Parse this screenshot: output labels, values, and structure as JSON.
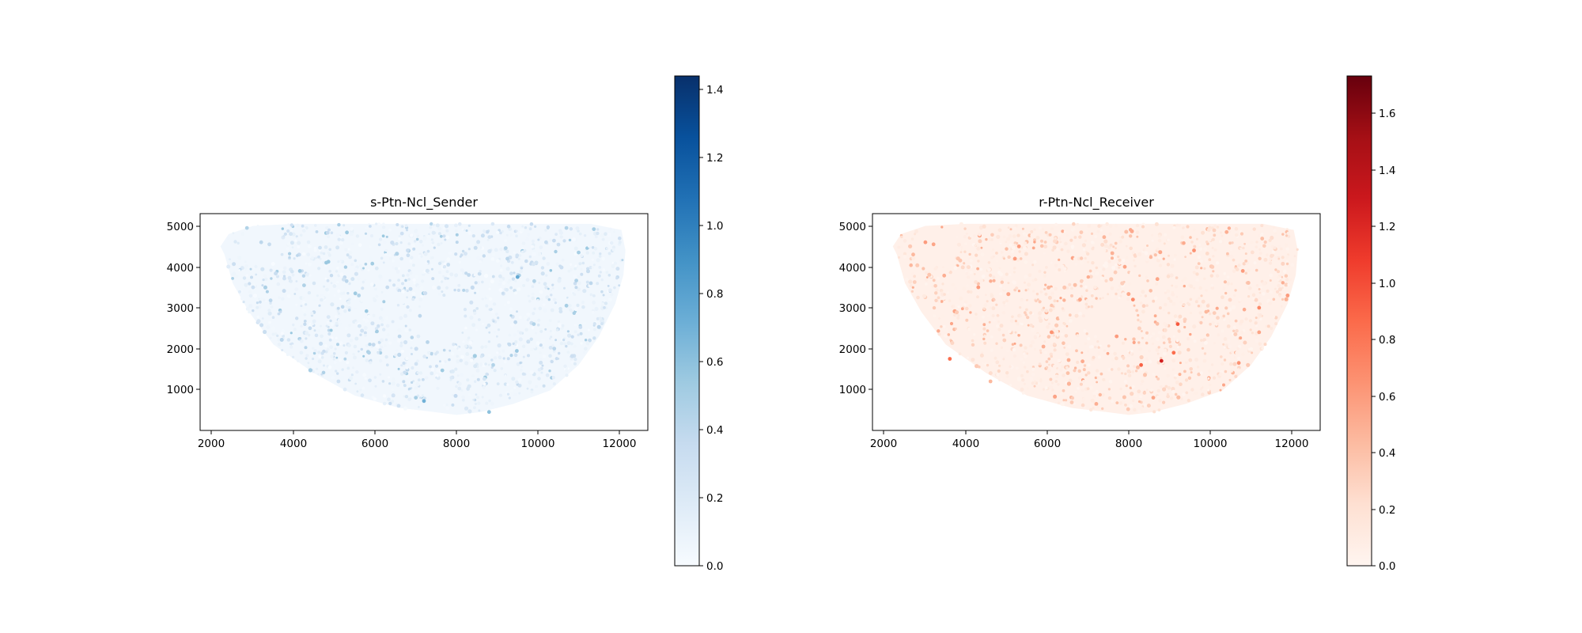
{
  "figure": {
    "panels": [
      {
        "title": "s-Ptn-Ncl_Sender",
        "cmap": "Blues",
        "colors": [
          "#f7fbff",
          "#deebf7",
          "#c6dbef",
          "#9ecae1",
          "#6baed6",
          "#4292c6",
          "#2171b5",
          "#08519c",
          "#08306b"
        ],
        "xticks": [
          "2000",
          "4000",
          "6000",
          "8000",
          "10000",
          "12000"
        ],
        "yticks": [
          "1000",
          "2000",
          "3000",
          "4000",
          "5000"
        ],
        "cbar_ticks": [
          "0.0",
          "0.2",
          "0.4",
          "0.6",
          "0.8",
          "1.0",
          "1.2",
          "1.4"
        ]
      },
      {
        "title": "r-Ptn-Ncl_Receiver",
        "cmap": "Reds",
        "colors": [
          "#fff5f0",
          "#fee0d2",
          "#fcbba1",
          "#fc9272",
          "#fb6a4a",
          "#ef3b2c",
          "#cb181d",
          "#a50f15",
          "#67000d"
        ],
        "xticks": [
          "2000",
          "4000",
          "6000",
          "8000",
          "10000",
          "12000"
        ],
        "yticks": [
          "1000",
          "2000",
          "3000",
          "4000",
          "5000"
        ],
        "cbar_ticks": [
          "0.0",
          "0.2",
          "0.4",
          "0.6",
          "0.8",
          "1.0",
          "1.2",
          "1.4",
          "1.6"
        ]
      }
    ]
  },
  "chart_data": [
    {
      "type": "scatter",
      "title": "s-Ptn-Ncl_Sender",
      "xlabel": "",
      "ylabel": "",
      "xlim": [
        1700,
        12700
      ],
      "ylim": [
        0,
        5300
      ],
      "color_scale": {
        "cmap": "Blues",
        "range": [
          0,
          1.44
        ]
      },
      "tissue_boundary": {
        "x": [
          2300,
          2500,
          2900,
          3500,
          4500,
          5500,
          6600,
          7300,
          8000,
          8600,
          9400,
          10300,
          11000,
          11500,
          11900,
          12100,
          12150,
          12050,
          11300,
          10000,
          8500,
          7000,
          5500,
          4000,
          3000,
          2400,
          2200
        ],
        "y": [
          4300,
          3600,
          2900,
          2100,
          1400,
          850,
          550,
          470,
          380,
          450,
          650,
          980,
          1600,
          2300,
          3100,
          3800,
          4400,
          4900,
          5050,
          5050,
          5050,
          5050,
          5050,
          5050,
          5000,
          4800,
          4500
        ]
      },
      "points": [
        {
          "x": 2850,
          "y": 4950,
          "v": 0.45
        },
        {
          "x": 3200,
          "y": 4600,
          "v": 0.4
        },
        {
          "x": 3400,
          "y": 4550,
          "v": 0.35
        },
        {
          "x": 4150,
          "y": 3900,
          "v": 0.5
        },
        {
          "x": 4800,
          "y": 4100,
          "v": 0.55
        },
        {
          "x": 5300,
          "y": 3650,
          "v": 0.4
        },
        {
          "x": 5600,
          "y": 3300,
          "v": 0.45
        },
        {
          "x": 6300,
          "y": 3500,
          "v": 0.35
        },
        {
          "x": 7100,
          "y": 2800,
          "v": 0.4
        },
        {
          "x": 5850,
          "y": 1900,
          "v": 0.45
        },
        {
          "x": 6600,
          "y": 2300,
          "v": 0.38
        },
        {
          "x": 7200,
          "y": 720,
          "v": 0.7
        },
        {
          "x": 7000,
          "y": 800,
          "v": 0.5
        },
        {
          "x": 8800,
          "y": 450,
          "v": 0.6
        },
        {
          "x": 8900,
          "y": 1600,
          "v": 0.45
        },
        {
          "x": 9500,
          "y": 3750,
          "v": 0.75
        },
        {
          "x": 9250,
          "y": 4200,
          "v": 0.4
        },
        {
          "x": 9900,
          "y": 2600,
          "v": 0.45
        },
        {
          "x": 10700,
          "y": 4950,
          "v": 0.45
        },
        {
          "x": 11000,
          "y": 4350,
          "v": 0.5
        },
        {
          "x": 11300,
          "y": 3600,
          "v": 0.4
        },
        {
          "x": 10700,
          "y": 3050,
          "v": 0.5
        },
        {
          "x": 10400,
          "y": 2000,
          "v": 0.4
        },
        {
          "x": 9300,
          "y": 2100,
          "v": 0.35
        },
        {
          "x": 8300,
          "y": 3800,
          "v": 0.38
        },
        {
          "x": 6800,
          "y": 4400,
          "v": 0.3
        },
        {
          "x": 4400,
          "y": 2500,
          "v": 0.35
        },
        {
          "x": 3000,
          "y": 3500,
          "v": 0.3
        },
        {
          "x": 5100,
          "y": 1200,
          "v": 0.3
        },
        {
          "x": 10200,
          "y": 4600,
          "v": 0.35
        }
      ]
    },
    {
      "type": "scatter",
      "title": "r-Ptn-Ncl_Receiver",
      "xlabel": "",
      "ylabel": "",
      "xlim": [
        1700,
        12700
      ],
      "ylim": [
        0,
        5300
      ],
      "color_scale": {
        "cmap": "Reds",
        "range": [
          0,
          1.73
        ]
      },
      "tissue_boundary": {
        "x": [
          2300,
          2500,
          2900,
          3500,
          4500,
          5500,
          6600,
          7300,
          8000,
          8600,
          9400,
          10300,
          11000,
          11500,
          11900,
          12100,
          12150,
          12050,
          11300,
          10000,
          8500,
          7000,
          5500,
          4000,
          3000,
          2400,
          2200
        ],
        "y": [
          4300,
          3600,
          2900,
          2100,
          1400,
          850,
          550,
          470,
          380,
          450,
          650,
          980,
          1600,
          2300,
          3100,
          3800,
          4400,
          4900,
          5050,
          5050,
          5050,
          5050,
          5050,
          5050,
          5000,
          4800,
          4500
        ]
      },
      "points": [
        {
          "x": 3000,
          "y": 4600,
          "v": 0.6
        },
        {
          "x": 3200,
          "y": 4550,
          "v": 0.55
        },
        {
          "x": 3600,
          "y": 1750,
          "v": 0.85
        },
        {
          "x": 4300,
          "y": 3500,
          "v": 0.6
        },
        {
          "x": 5200,
          "y": 4200,
          "v": 0.6
        },
        {
          "x": 6100,
          "y": 2400,
          "v": 0.65
        },
        {
          "x": 6800,
          "y": 3200,
          "v": 0.55
        },
        {
          "x": 7700,
          "y": 2300,
          "v": 0.6
        },
        {
          "x": 7900,
          "y": 4000,
          "v": 0.55
        },
        {
          "x": 8300,
          "y": 1600,
          "v": 0.9
        },
        {
          "x": 8800,
          "y": 1700,
          "v": 1.25
        },
        {
          "x": 9200,
          "y": 2600,
          "v": 0.95
        },
        {
          "x": 9100,
          "y": 1900,
          "v": 0.85
        },
        {
          "x": 8100,
          "y": 3200,
          "v": 0.7
        },
        {
          "x": 9600,
          "y": 4400,
          "v": 0.65
        },
        {
          "x": 10800,
          "y": 3900,
          "v": 0.6
        },
        {
          "x": 11200,
          "y": 3000,
          "v": 0.7
        },
        {
          "x": 11900,
          "y": 3300,
          "v": 0.6
        },
        {
          "x": 11200,
          "y": 2400,
          "v": 0.55
        },
        {
          "x": 10700,
          "y": 1650,
          "v": 0.65
        },
        {
          "x": 5300,
          "y": 4500,
          "v": 0.6
        },
        {
          "x": 8700,
          "y": 3700,
          "v": 0.55
        },
        {
          "x": 5900,
          "y": 2050,
          "v": 0.5
        },
        {
          "x": 7200,
          "y": 650,
          "v": 0.5
        },
        {
          "x": 10400,
          "y": 4850,
          "v": 0.5
        },
        {
          "x": 2700,
          "y": 4300,
          "v": 0.45
        },
        {
          "x": 4600,
          "y": 1200,
          "v": 0.45
        },
        {
          "x": 9900,
          "y": 2900,
          "v": 0.45
        },
        {
          "x": 6500,
          "y": 1400,
          "v": 0.4
        },
        {
          "x": 8600,
          "y": 800,
          "v": 0.55
        }
      ]
    }
  ]
}
